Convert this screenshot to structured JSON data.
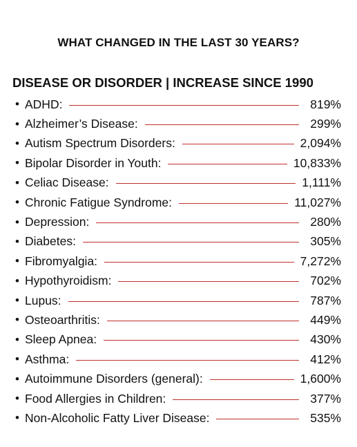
{
  "title": "WHAT CHANGED IN THE LAST 30 YEARS?",
  "header": "DISEASE OR DISORDER | INCREASE SINCE 1990",
  "colors": {
    "line": "#c0302b",
    "text": "#111111"
  },
  "bullet": "•",
  "rows": [
    {
      "name": "ADHD:",
      "value": "819%"
    },
    {
      "name": "Alzheimer’s Disease:",
      "value": "299%"
    },
    {
      "name": "Autism Spectrum Disorders:",
      "value": "2,094%"
    },
    {
      "name": "Bipolar Disorder in Youth:",
      "value": "10,833%"
    },
    {
      "name": "Celiac Disease:",
      "value": "1,111%"
    },
    {
      "name": "Chronic Fatigue Syndrome:",
      "value": "11,027%"
    },
    {
      "name": "Depression:",
      "value": "280%"
    },
    {
      "name": "Diabetes:",
      "value": "305%"
    },
    {
      "name": "Fibromyalgia:",
      "value": "7,272%"
    },
    {
      "name": "Hypothyroidism:",
      "value": "702%"
    },
    {
      "name": "Lupus:",
      "value": "787%"
    },
    {
      "name": "Osteoarthritis:",
      "value": "449%"
    },
    {
      "name": "Sleep Apnea:",
      "value": "430%"
    },
    {
      "name": "Asthma:",
      "value": "412%"
    },
    {
      "name": "Autoimmune Disorders (general):",
      "value": "1,600%"
    },
    {
      "name": "Food Allergies in Children:",
      "value": "377%"
    },
    {
      "name": "Non-Alcoholic Fatty Liver Disease:",
      "value": "535%"
    }
  ]
}
